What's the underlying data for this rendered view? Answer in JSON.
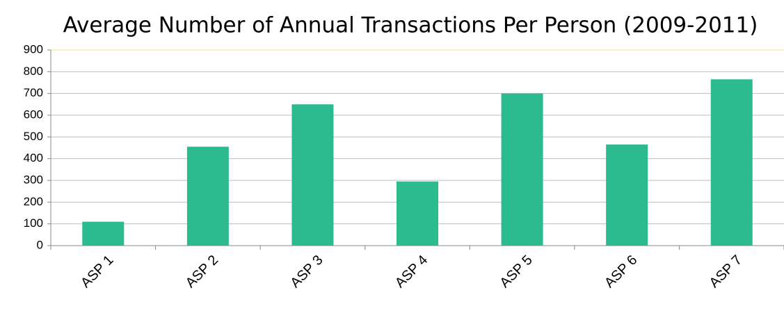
{
  "chart_data": {
    "type": "bar",
    "title": "Average Number of Annual Transactions Per Person (2009-2011)",
    "categories": [
      "ASP 1",
      "ASP 2",
      "ASP 3",
      "ASP 4",
      "ASP 5",
      "ASP 6",
      "ASP 7"
    ],
    "values": [
      110,
      455,
      650,
      295,
      700,
      465,
      765
    ],
    "color": "#2bbb8e",
    "ylim": [
      0,
      900
    ],
    "yticks": [
      0,
      100,
      200,
      300,
      400,
      500,
      600,
      700,
      800,
      900
    ],
    "grid": true
  }
}
